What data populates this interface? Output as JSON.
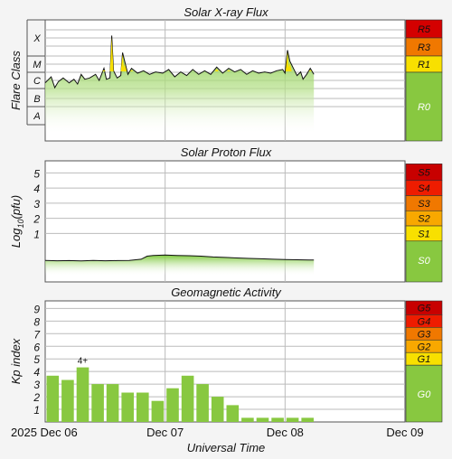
{
  "chart_data": [
    {
      "type": "area",
      "title": "Solar X-ray Flux",
      "ylabel": "Flare Class",
      "y_classes": [
        "A",
        "B",
        "C",
        "M",
        "X"
      ],
      "scale": [
        {
          "label": "R5",
          "color": "#d40000"
        },
        {
          "label": "R3",
          "color": "#f07800"
        },
        {
          "label": "R1",
          "color": "#f8e000"
        },
        {
          "label": "R0",
          "color": "#88c840"
        }
      ],
      "x_range_days": [
        0,
        3
      ],
      "grid": true,
      "series": [
        {
          "values": [
            [
              0.0,
              0.48
            ],
            [
              0.05,
              0.53
            ],
            [
              0.08,
              0.44
            ],
            [
              0.11,
              0.49
            ],
            [
              0.15,
              0.52
            ],
            [
              0.2,
              0.48
            ],
            [
              0.24,
              0.51
            ],
            [
              0.27,
              0.47
            ],
            [
              0.3,
              0.55
            ],
            [
              0.33,
              0.51
            ],
            [
              0.37,
              0.52
            ],
            [
              0.42,
              0.55
            ],
            [
              0.45,
              0.5
            ],
            [
              0.49,
              0.6
            ],
            [
              0.51,
              0.51
            ],
            [
              0.54,
              0.52
            ],
            [
              0.555,
              0.87
            ],
            [
              0.57,
              0.58
            ],
            [
              0.6,
              0.52
            ],
            [
              0.63,
              0.54
            ],
            [
              0.645,
              0.73
            ],
            [
              0.665,
              0.65
            ],
            [
              0.69,
              0.55
            ],
            [
              0.72,
              0.6
            ],
            [
              0.77,
              0.56
            ],
            [
              0.82,
              0.58
            ],
            [
              0.87,
              0.55
            ],
            [
              0.92,
              0.57
            ],
            [
              0.98,
              0.56
            ],
            [
              1.03,
              0.59
            ],
            [
              1.08,
              0.53
            ],
            [
              1.13,
              0.57
            ],
            [
              1.18,
              0.54
            ],
            [
              1.23,
              0.59
            ],
            [
              1.28,
              0.55
            ],
            [
              1.33,
              0.58
            ],
            [
              1.38,
              0.55
            ],
            [
              1.43,
              0.61
            ],
            [
              1.48,
              0.56
            ],
            [
              1.53,
              0.6
            ],
            [
              1.58,
              0.57
            ],
            [
              1.63,
              0.59
            ],
            [
              1.68,
              0.55
            ],
            [
              1.73,
              0.58
            ],
            [
              1.78,
              0.56
            ],
            [
              1.83,
              0.57
            ],
            [
              1.88,
              0.56
            ],
            [
              1.93,
              0.58
            ],
            [
              1.98,
              0.59
            ],
            [
              2.0,
              0.56
            ],
            [
              2.02,
              0.75
            ],
            [
              2.04,
              0.66
            ],
            [
              2.08,
              0.58
            ],
            [
              2.1,
              0.54
            ],
            [
              2.13,
              0.57
            ],
            [
              2.15,
              0.51
            ],
            [
              2.18,
              0.55
            ],
            [
              2.21,
              0.6
            ],
            [
              2.24,
              0.55
            ]
          ]
        }
      ]
    },
    {
      "type": "area",
      "title": "Solar Proton Flux",
      "ylabel": "Log10(pfu)",
      "yticks": [
        1,
        2,
        3,
        4,
        5
      ],
      "ylim": [
        -2.2,
        5.8
      ],
      "scale": [
        {
          "label": "S5",
          "color": "#c80000"
        },
        {
          "label": "S4",
          "color": "#ee1c00"
        },
        {
          "label": "S3",
          "color": "#f07800"
        },
        {
          "label": "S2",
          "color": "#f8a800"
        },
        {
          "label": "S1",
          "color": "#f8e000"
        },
        {
          "label": "S0",
          "color": "#88c840"
        }
      ],
      "x_range_days": [
        0,
        3
      ],
      "grid": true,
      "series": [
        {
          "values": [
            [
              0.0,
              -0.78
            ],
            [
              0.1,
              -0.8
            ],
            [
              0.2,
              -0.79
            ],
            [
              0.3,
              -0.81
            ],
            [
              0.4,
              -0.78
            ],
            [
              0.5,
              -0.8
            ],
            [
              0.6,
              -0.79
            ],
            [
              0.7,
              -0.78
            ],
            [
              0.8,
              -0.7
            ],
            [
              0.85,
              -0.5
            ],
            [
              0.9,
              -0.45
            ],
            [
              1.0,
              -0.42
            ],
            [
              1.1,
              -0.45
            ],
            [
              1.2,
              -0.47
            ],
            [
              1.3,
              -0.5
            ],
            [
              1.4,
              -0.55
            ],
            [
              1.5,
              -0.58
            ],
            [
              1.6,
              -0.62
            ],
            [
              1.7,
              -0.65
            ],
            [
              1.8,
              -0.67
            ],
            [
              1.9,
              -0.7
            ],
            [
              2.0,
              -0.72
            ],
            [
              2.1,
              -0.74
            ],
            [
              2.2,
              -0.75
            ],
            [
              2.24,
              -0.75
            ]
          ]
        }
      ]
    },
    {
      "type": "bar",
      "title": "Geomagnetic Activity",
      "ylabel": "Kp index",
      "xlabel": "Universal Time",
      "ylim": [
        0,
        9.6
      ],
      "yticks": [
        1,
        2,
        3,
        4,
        5,
        6,
        7,
        8,
        9
      ],
      "xticks": [
        "2025 Dec 06",
        "Dec 07",
        "Dec 08",
        "Dec 09"
      ],
      "bar_start_hours": [
        0,
        3,
        6,
        9,
        12,
        15,
        18,
        21,
        24,
        27,
        30,
        33,
        36,
        39,
        42,
        45,
        48,
        51
      ],
      "values": [
        3.67,
        3.33,
        4.33,
        3.0,
        3.0,
        2.33,
        2.33,
        1.67,
        2.67,
        3.67,
        3.0,
        2.0,
        1.33,
        0.33,
        0.33,
        0.33,
        0.33,
        0.33
      ],
      "annotations": [
        {
          "bar": 2,
          "text": "4+"
        }
      ],
      "scale": [
        {
          "label": "G5",
          "color": "#c80000"
        },
        {
          "label": "G4",
          "color": "#ee1c00"
        },
        {
          "label": "G3",
          "color": "#f07800"
        },
        {
          "label": "G2",
          "color": "#f8a800"
        },
        {
          "label": "G1",
          "color": "#f8e000"
        },
        {
          "label": "G0",
          "color": "#88c840"
        }
      ],
      "grid": true
    }
  ]
}
